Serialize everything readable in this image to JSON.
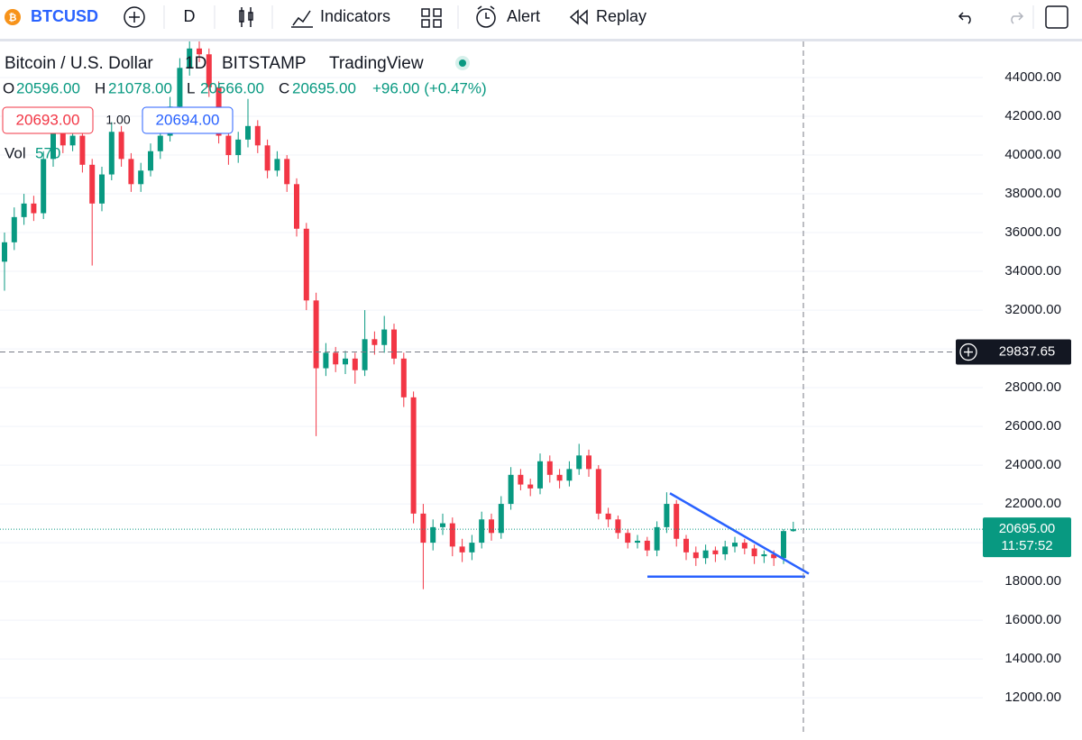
{
  "toolbar": {
    "symbol": "BTCUSD",
    "interval": "D",
    "indicators": "Indicators",
    "alert": "Alert",
    "replay": "Replay"
  },
  "legend": {
    "name": "Bitcoin / U.S. Dollar",
    "interval": "1D",
    "exchange": "BITSTAMP",
    "source": "TradingView",
    "ohlc": [
      {
        "key": "O",
        "value": "20596.00"
      },
      {
        "key": "H",
        "value": "21078.00"
      },
      {
        "key": "L",
        "value": "20566.00"
      },
      {
        "key": "C",
        "value": "20695.00"
      }
    ],
    "change": "+96.00 (+0.47%)",
    "bid": "20693.00",
    "spread": "1.00",
    "ask": "20694.00",
    "volume_label": "Vol",
    "volume": "570"
  },
  "chart_data": {
    "type": "candlestick",
    "up_color": "#089981",
    "down_color": "#f23645",
    "open": [
      34500,
      35500,
      36800,
      37500,
      37000,
      39800,
      41500,
      40500,
      41000,
      39500,
      37500,
      39000,
      41200,
      39800,
      38500,
      39200,
      40200,
      41000,
      42500,
      44500,
      45500,
      45200,
      43500,
      41000,
      40000,
      40800,
      41500,
      40500,
      39200,
      39800,
      38500,
      36200,
      32500,
      29000,
      29800,
      29200,
      29500,
      28900,
      30500,
      30200,
      31000,
      29500,
      27500,
      21500,
      20000,
      20800,
      21000,
      19800,
      19500,
      20000,
      21200,
      20500,
      22000,
      23500,
      23000,
      22800,
      24200,
      23500,
      23200,
      23800,
      24500,
      23800,
      21500,
      21200,
      20500,
      20000,
      20100,
      19600,
      20800,
      22000,
      20200,
      19500,
      19200,
      19600,
      19400,
      19800,
      20000,
      19700,
      19300,
      19400,
      19200,
      20596
    ],
    "high": [
      36000,
      37300,
      38000,
      37900,
      40200,
      42000,
      41800,
      41500,
      41300,
      39800,
      39400,
      41700,
      41500,
      40100,
      39600,
      40600,
      41500,
      43000,
      45000,
      46000,
      45900,
      45500,
      43800,
      41300,
      41200,
      42900,
      41800,
      40800,
      40200,
      40000,
      38800,
      36500,
      32900,
      30300,
      30100,
      29900,
      29800,
      32000,
      30900,
      31700,
      31300,
      29800,
      27800,
      22000,
      21200,
      21500,
      21300,
      20200,
      20400,
      21600,
      21500,
      22400,
      23900,
      23800,
      23300,
      24600,
      24500,
      23800,
      24200,
      25100,
      24800,
      24000,
      21800,
      21400,
      20700,
      20400,
      20300,
      21100,
      22600,
      22200,
      20400,
      19800,
      19900,
      19800,
      20100,
      20300,
      20200,
      19900,
      19600,
      19600,
      20700,
      21078
    ],
    "low": [
      33000,
      35100,
      36400,
      36600,
      36700,
      39400,
      40100,
      40200,
      39100,
      34300,
      37100,
      38700,
      39400,
      38100,
      38100,
      38900,
      39800,
      40700,
      42200,
      44100,
      44800,
      43000,
      40600,
      39500,
      39600,
      40400,
      40100,
      38800,
      38900,
      38100,
      35800,
      32000,
      25500,
      28600,
      28800,
      28700,
      28200,
      28600,
      29700,
      29800,
      29200,
      27000,
      21000,
      17600,
      19600,
      20400,
      19300,
      19000,
      19100,
      19700,
      20100,
      20200,
      21700,
      22700,
      22400,
      22500,
      23100,
      22800,
      22900,
      23500,
      23400,
      21200,
      20800,
      20200,
      19700,
      19700,
      19300,
      19300,
      20500,
      19800,
      19100,
      18800,
      18900,
      19000,
      19100,
      19500,
      19400,
      18900,
      18950,
      18800,
      18900,
      20566
    ],
    "close": [
      35500,
      36800,
      37500,
      37000,
      39800,
      41500,
      40500,
      41000,
      39500,
      37500,
      39000,
      41200,
      39800,
      38500,
      39200,
      40200,
      41000,
      42500,
      44500,
      45500,
      45200,
      43500,
      41000,
      40000,
      40800,
      41500,
      40500,
      39200,
      39800,
      38500,
      36200,
      32500,
      29000,
      29800,
      29200,
      29500,
      28900,
      30500,
      30200,
      31000,
      29500,
      27500,
      21500,
      20000,
      20800,
      21000,
      19800,
      19500,
      20000,
      21200,
      20500,
      22000,
      23500,
      23000,
      22800,
      24200,
      23500,
      23200,
      23800,
      24500,
      23800,
      21500,
      21200,
      20500,
      20000,
      20100,
      19600,
      20800,
      22000,
      20200,
      19500,
      19200,
      19600,
      19400,
      19800,
      20000,
      19700,
      19300,
      19400,
      19200,
      20599,
      20695
    ],
    "ylim": [
      10050,
      45770
    ],
    "yticks": [
      {
        "value": 12000,
        "label": "12000.00"
      },
      {
        "value": 14000,
        "label": "14000.00"
      },
      {
        "value": 16000,
        "label": "16000.00"
      },
      {
        "value": 18000,
        "label": "18000.00"
      },
      {
        "value": 20000,
        "label": "20000.00"
      },
      {
        "value": 22000,
        "label": "22000.00"
      },
      {
        "value": 24000,
        "label": "24000.00"
      },
      {
        "value": 26000,
        "label": "26000.00"
      },
      {
        "value": 28000,
        "label": "28000.00"
      },
      {
        "value": 30000,
        "label": "30000.00"
      },
      {
        "value": 32000,
        "label": "32000.00"
      },
      {
        "value": 34000,
        "label": "34000.00"
      },
      {
        "value": 36000,
        "label": "36000.00"
      },
      {
        "value": 38000,
        "label": "38000.00"
      },
      {
        "value": 40000,
        "label": "40000.00"
      },
      {
        "value": 42000,
        "label": "42000.00"
      },
      {
        "value": 44000,
        "label": "44000.00"
      }
    ],
    "grid": true,
    "last_price": {
      "value": 20695,
      "label": "20695.00"
    },
    "countdown": "11:57:52",
    "crosshair": {
      "value": 29837.65,
      "label": "29837.65"
    },
    "drawings": {
      "trendline": [
        22550,
        18400
      ],
      "support": 18250,
      "color": "#2962ff"
    }
  }
}
